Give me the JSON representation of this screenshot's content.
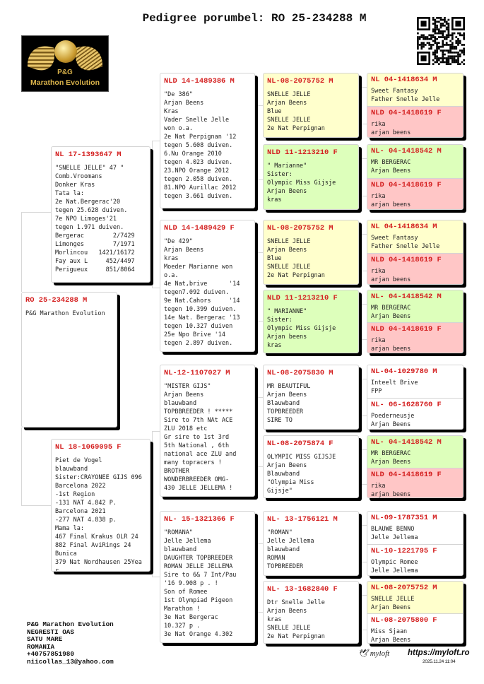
{
  "title": "Pedigree porumbel: RO 25-234288 M",
  "logo": {
    "line1": "P&G",
    "line2": "Marathon Evolution"
  },
  "colors": {
    "yellow": "#ffffcc",
    "green": "#ddffbb",
    "red": "#ffc6c6",
    "ring": "#d42020"
  },
  "subject": {
    "ring": "RO 25-234288 M",
    "lines": [
      "P&G Marathon Evolution"
    ],
    "color": "white"
  },
  "parents": [
    {
      "ring": "NL 17-1393647 M",
      "color": "white",
      "lines": [
        "\"SNELLE JELLE\" 47 \"",
        "Comb.Vroomans",
        "Donker Kras",
        "Tata la:",
        "2e Nat.Bergerac'20",
        "tegen 25.628 duiven.",
        "7e NPO Limoges'21",
        "tegen 1.971 duiven.",
        "Bergerac        2/7429",
        "Limonges        7/1971",
        "Morlincou   1421/16172",
        "Fay aux L     452/4497",
        "Perigueux     851/8064"
      ]
    },
    {
      "ring": "NL 18-1069095 F",
      "color": "white",
      "lines": [
        "Piet de Vogel",
        "blauwband",
        "Sister:CRAYONEE GIJS 096",
        "Barcelona 2022",
        "-1st Region",
        "-131 NAT 4.842 P.",
        "Barcelona 2021",
        "-277 NAT 4.838 p.",
        "Mama la:",
        "467 Final Krakus OLR 24",
        "882 Final AviRings 24",
        "Bunica",
        "379 Nat Nordhausen 25Yea",
        "r"
      ]
    }
  ],
  "grandparents": [
    {
      "ring": "NLD 14-1489386 M",
      "color": "white",
      "lines": [
        "\"De 386\"",
        "Arjan Beens",
        "Kras",
        "Vader Snelle Jelle",
        "won o.a.",
        "2e Nat Perpignan '12",
        "tegen 5.608 duiven.",
        "6.Nu Orange 2010",
        "tegen 4.023 duiven.",
        "23.NPO Orange 2012",
        "tegen 2.058 duiven.",
        "81.NPO Aurillac 2012",
        "tegen 3.661 duiven."
      ]
    },
    {
      "ring": "NLD 14-1489429 F",
      "color": "white",
      "lines": [
        "\"De 429\"",
        "Arjan Beens",
        "kras",
        "Moeder Marianne won",
        "o.a.",
        "4e Nat,brive      '14",
        "tegen7.092 duiven.",
        "9e Nat.Cahors     '14",
        "tegen 10.399 duiven.",
        "14e Nat. Bergerac '13",
        "tegen 10.327 duiven",
        "25e Npo Brive '14",
        "tegen 2.897 duiven."
      ]
    },
    {
      "ring": "NL-12-1107027 M",
      "color": "white",
      "lines": [
        "\"MISTER GIJS\"",
        "Arjan Beens",
        "blauwband",
        "TOPBBREEDER ! *****",
        "Sire to 7th NAt ACE",
        "ZLU 2018 etc",
        "Gr sire to 1st 3rd",
        "5th National , 6th",
        "national ace ZLU and",
        "many topracers !",
        "BROTHER",
        "WONDERBREEDER OMG-",
        "430 JELLE JELLEMA !"
      ]
    },
    {
      "ring": "NL- 15-1321366 F",
      "color": "white",
      "lines": [
        "\"ROMANA\"",
        "Jelle Jellema",
        "blauwband",
        "DAUGHTER TOPBREEDER",
        "ROMAN JELLE JELLEMA",
        "Sire to 6& 7 Int/Pau",
        "'16 9.908 p . !",
        "Son of Romee",
        "1st Olympiad Pigeon",
        "Marathon !",
        "3e Nat Bergerac",
        "10.327 p .",
        "3e Nat Orange 4.302",
        "-"
      ]
    }
  ],
  "great_grandparents": [
    {
      "ring": "NL-08-2075752 M",
      "color": "yellow",
      "lines": [
        "SNELLE JELLE",
        "Arjan Beens",
        "Blue",
        "SNELLE JELLE",
        "2e Nat Perpignan"
      ]
    },
    {
      "ring": "NLD 11-1213210 F",
      "color": "green",
      "lines": [
        "\" Marianne\"",
        "Sister:",
        "Olympic Miss Gijsje",
        "Arjan Beens",
        "kras"
      ]
    },
    {
      "ring": "NL-08-2075752 M",
      "color": "yellow",
      "lines": [
        "SNELLE JELLE",
        "Arjan Beens",
        "Blue",
        "SNELLE JELLE",
        "2e Nat Perpignan"
      ]
    },
    {
      "ring": "NLD 11-1213210 F",
      "color": "green",
      "lines": [
        "\" MARIANNE\"",
        "Sister:",
        "Olympic Miss Gijsje",
        "Arjan beens",
        "kras"
      ]
    },
    {
      "ring": "NL-08-2075830 M",
      "color": "white",
      "lines": [
        "MR BEAUTIFUL",
        "Arjan Beens",
        "Blauwband",
        "TOPBREEDER",
        "SIRE TO"
      ]
    },
    {
      "ring": "NL-08-2075874 F",
      "color": "white",
      "lines": [
        "OLYMPIC MISS GIJSJE",
        "Arjan Beens",
        "Blauwband",
        "\"Olympia Miss",
        "Gijsje\""
      ]
    },
    {
      "ring": "NL- 13-1756121 M",
      "color": "white",
      "lines": [
        "\"ROMAN\"",
        "Jelle Jellema",
        "blauwband",
        "ROMAN",
        "TOPBREEDER"
      ]
    },
    {
      "ring": "NL- 13-1682840 F",
      "color": "white",
      "lines": [
        "Dtr Snelle Jelle",
        "Arjan Beens",
        "kras",
        "SNELLE JELLE",
        "2e Nat Perpignan"
      ]
    }
  ],
  "gg_grandparents": [
    {
      "ring": "NL 04-1418634 M",
      "color": "yellow",
      "lines": [
        "Sweet Fantasy",
        "Father Snelle Jelle"
      ]
    },
    {
      "ring": "NLD 04-1418619 F",
      "color": "red",
      "lines": [
        "rika",
        "arjan beens"
      ]
    },
    {
      "ring": "NL- 04-1418542 M",
      "color": "green",
      "lines": [
        "MR BERGERAC",
        "Arjan Beens"
      ]
    },
    {
      "ring": "NLD 04-1418619 F",
      "color": "red",
      "lines": [
        "rika",
        "arjan beens"
      ]
    },
    {
      "ring": "NL 04-1418634 M",
      "color": "yellow",
      "lines": [
        "Sweet Fantasy",
        "Father Snelle Jelle"
      ]
    },
    {
      "ring": "NLD 04-1418619 F",
      "color": "red",
      "lines": [
        "rika",
        "arjan beens"
      ]
    },
    {
      "ring": "NL- 04-1418542 M",
      "color": "green",
      "lines": [
        "MR BERGERAC",
        "Arjan Beens"
      ]
    },
    {
      "ring": "NLD 04-1418619 F",
      "color": "red",
      "lines": [
        "rika",
        "arjan beens"
      ]
    },
    {
      "ring": "NL-04-1029780 M",
      "color": "white",
      "lines": [
        "Inteelt Brive",
        "FPP"
      ]
    },
    {
      "ring": "NL- 06-1628760 F",
      "color": "white",
      "lines": [
        "Poederneusje",
        "Arjan Beens"
      ]
    },
    {
      "ring": "NL- 04-1418542 M",
      "color": "green",
      "lines": [
        "MR BERGERAC",
        "Arjan Beens"
      ]
    },
    {
      "ring": "NLD 04-1418619 F",
      "color": "red",
      "lines": [
        "rika",
        "arjan beens"
      ]
    },
    {
      "ring": "NL-09-1787351 M",
      "color": "white",
      "lines": [
        "BLAUWE BENNO",
        "Jelle Jellema"
      ]
    },
    {
      "ring": "NL-10-1221795 F",
      "color": "white",
      "lines": [
        "Olympic Romee",
        "Jelle Jellema"
      ]
    },
    {
      "ring": "NL-08-2075752 M",
      "color": "yellow",
      "lines": [
        "SNELLE JELLE",
        "Arjan Beens"
      ]
    },
    {
      "ring": "NL-08-2075800 F",
      "color": "white",
      "lines": [
        "Miss Sjaan",
        "Arjan Beens"
      ]
    }
  ],
  "footer": {
    "contact": [
      "P&G Marathon Evolution",
      "NEGRESTI OAS",
      "SATU MARE",
      "ROMANIA",
      "+40757851980",
      "niicollas_13@yahoo.com"
    ],
    "brand": "myloft",
    "url": "https://myloft.ro",
    "timestamp": "2025.11.24 11:04"
  }
}
